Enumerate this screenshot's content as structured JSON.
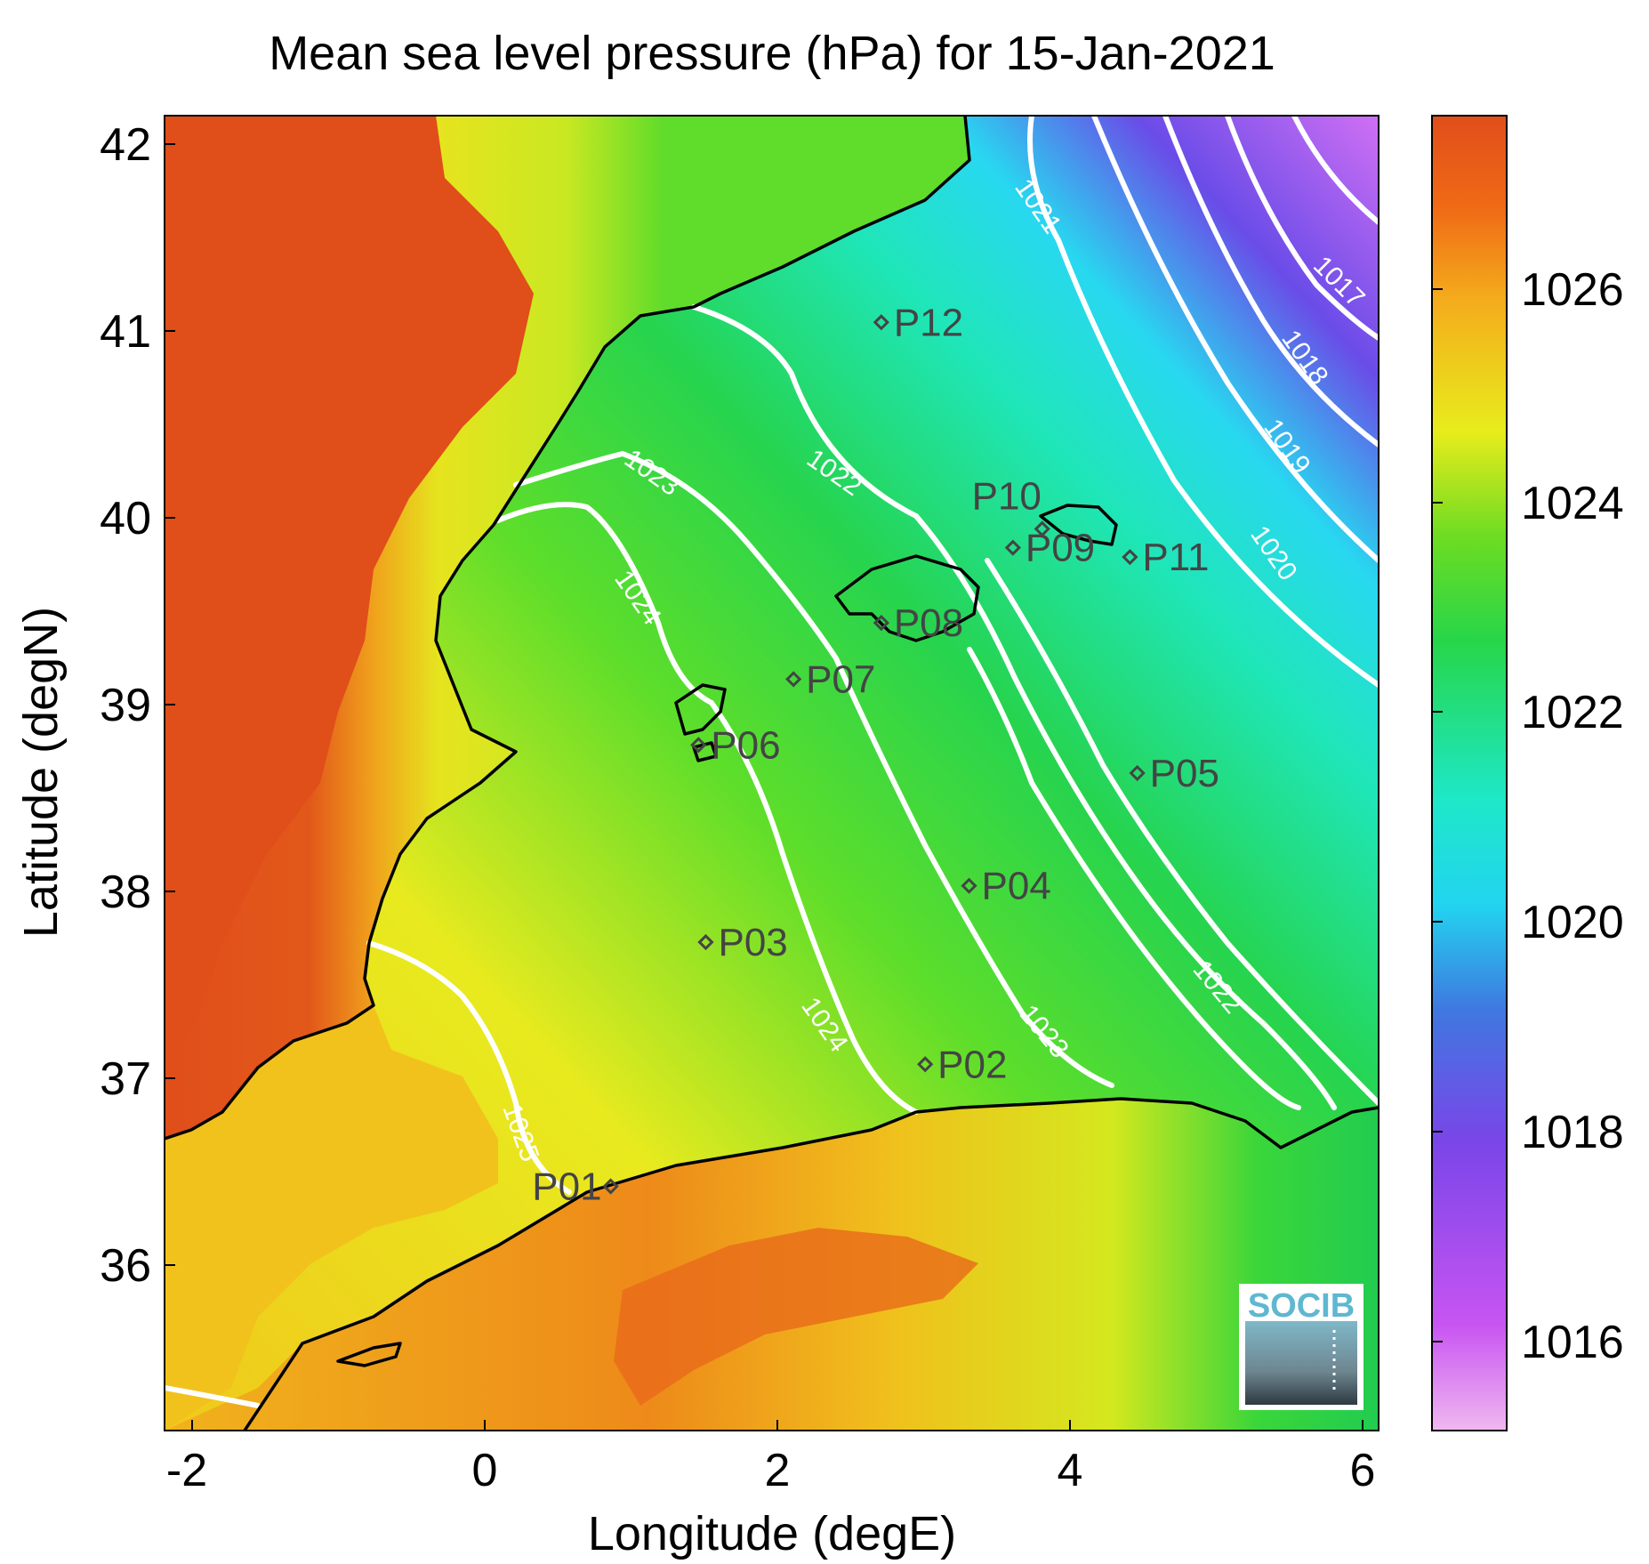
{
  "title": "Mean sea level pressure (hPa) for 15-Jan-2021",
  "xlabel": "Longitude (degE)",
  "ylabel": "Latitude (degN)",
  "x_ticks": [
    "-2",
    "0",
    "2",
    "4",
    "6"
  ],
  "y_ticks": [
    "42",
    "41",
    "40",
    "39",
    "38",
    "37",
    "36"
  ],
  "colorbar": {
    "ticks": [
      "1026",
      "1024",
      "1022",
      "1020",
      "1018",
      "1016"
    ],
    "range": [
      1015,
      1027.5
    ],
    "colors": {
      "high": "#e04e1a",
      "orange": "#f4a21c",
      "yellow": "#f2ea1c",
      "green": "#2fd43a",
      "cyan": "#22e6e0",
      "blue": "#4f6fdc",
      "purple": "#8a3cf0",
      "low": "#f0b0f0"
    }
  },
  "logo": "SOCIB",
  "contour_labels": [
    "1017",
    "1018",
    "1019",
    "1020",
    "1021",
    "1022",
    "1023",
    "1024",
    "1022",
    "1023",
    "1024",
    "1025"
  ],
  "stations": [
    {
      "id": "P01",
      "lon": 0.85,
      "lat": 36.5
    },
    {
      "id": "P02",
      "lon": 3.0,
      "lat": 37.15
    },
    {
      "id": "P03",
      "lon": 1.5,
      "lat": 37.8
    },
    {
      "id": "P04",
      "lon": 3.3,
      "lat": 38.1
    },
    {
      "id": "P05",
      "lon": 4.45,
      "lat": 38.7
    },
    {
      "id": "P06",
      "lon": 1.45,
      "lat": 38.85
    },
    {
      "id": "P07",
      "lon": 2.1,
      "lat": 39.2
    },
    {
      "id": "P08",
      "lon": 2.7,
      "lat": 39.5
    },
    {
      "id": "P09",
      "lon": 3.6,
      "lat": 39.9
    },
    {
      "id": "P10",
      "lon": 3.8,
      "lat": 40.0
    },
    {
      "id": "P11",
      "lon": 4.4,
      "lat": 39.85
    },
    {
      "id": "P12",
      "lon": 2.7,
      "lat": 41.1
    }
  ],
  "extent": {
    "lon": [
      -2.2,
      6.1
    ],
    "lat": [
      35.2,
      42.2
    ]
  }
}
